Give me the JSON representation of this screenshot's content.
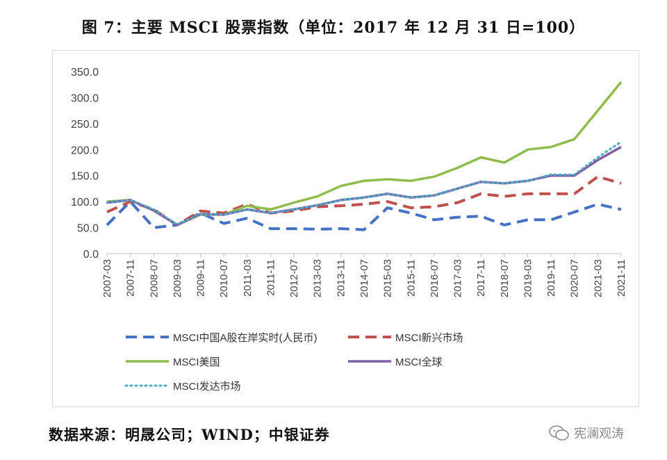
{
  "figure": {
    "title": "图 7：主要 MSCI 股票指数（单位：2017 年 12 月 31 日=100）",
    "source": "数据来源：明晟公司；WIND；中银证券",
    "watermark": "宪澜观涛",
    "watermark_icon": "wechat-icon"
  },
  "chart_data": {
    "type": "line",
    "x": [
      "2007-03",
      "2007-11",
      "2008-07",
      "2009-03",
      "2009-11",
      "2010-07",
      "2011-03",
      "2011-11",
      "2012-07",
      "2013-03",
      "2013-11",
      "2014-07",
      "2015-03",
      "2015-11",
      "2016-07",
      "2017-03",
      "2017-11",
      "2018-07",
      "2019-03",
      "2019-11",
      "2020-07",
      "2021-03",
      "2021-11"
    ],
    "x_tick_labels": [
      "2007-03",
      "2007-11",
      "2008-07",
      "2009-03",
      "2009-11",
      "2010-07",
      "2011-03",
      "2011-11",
      "2012-07",
      "2013-03",
      "2013-11",
      "2014-07",
      "2015-03",
      "2015-11",
      "2016-07",
      "2017-03",
      "2017-11",
      "2018-07",
      "2019-03",
      "2019-11",
      "2020-07",
      "2021-03",
      "2021-11"
    ],
    "y_tick_labels": [
      "0.0",
      "50.0",
      "100.0",
      "150.0",
      "200.0",
      "250.0",
      "300.0",
      "350.0"
    ],
    "ylim": [
      0,
      350
    ],
    "grid": false,
    "legend_position": "bottom",
    "series": [
      {
        "name": "MSCI中国A股在岸实时(人民币)",
        "color": "#4472c4",
        "style": "dashed",
        "values": [
          55,
          100,
          50,
          55,
          78,
          58,
          68,
          48,
          48,
          47,
          48,
          46,
          88,
          78,
          65,
          70,
          72,
          55,
          65,
          65,
          80,
          95,
          85
        ]
      },
      {
        "name": "MSCI新兴市场",
        "color": "#c0504d",
        "style": "dashed",
        "values": [
          80,
          100,
          85,
          55,
          82,
          78,
          95,
          78,
          82,
          90,
          92,
          95,
          100,
          88,
          90,
          98,
          115,
          110,
          115,
          115,
          115,
          148,
          135
        ]
      },
      {
        "name": "MSCI美国",
        "color": "#8fbc4a",
        "style": "solid",
        "values": [
          100,
          103,
          83,
          55,
          75,
          75,
          92,
          85,
          98,
          110,
          130,
          140,
          143,
          140,
          148,
          165,
          185,
          175,
          200,
          205,
          220,
          275,
          330
        ]
      },
      {
        "name": "MSCI全球",
        "color": "#7f5fa6",
        "style": "solid",
        "values": [
          98,
          103,
          83,
          55,
          76,
          75,
          85,
          78,
          85,
          93,
          103,
          108,
          115,
          108,
          112,
          125,
          138,
          135,
          140,
          150,
          150,
          180,
          205
        ]
      },
      {
        "name": "MSCI发达市场",
        "color": "#4bacc6",
        "style": "dotted",
        "values": [
          98,
          103,
          85,
          56,
          76,
          75,
          85,
          78,
          85,
          93,
          103,
          108,
          115,
          108,
          112,
          125,
          138,
          135,
          140,
          152,
          152,
          185,
          215
        ]
      }
    ]
  }
}
